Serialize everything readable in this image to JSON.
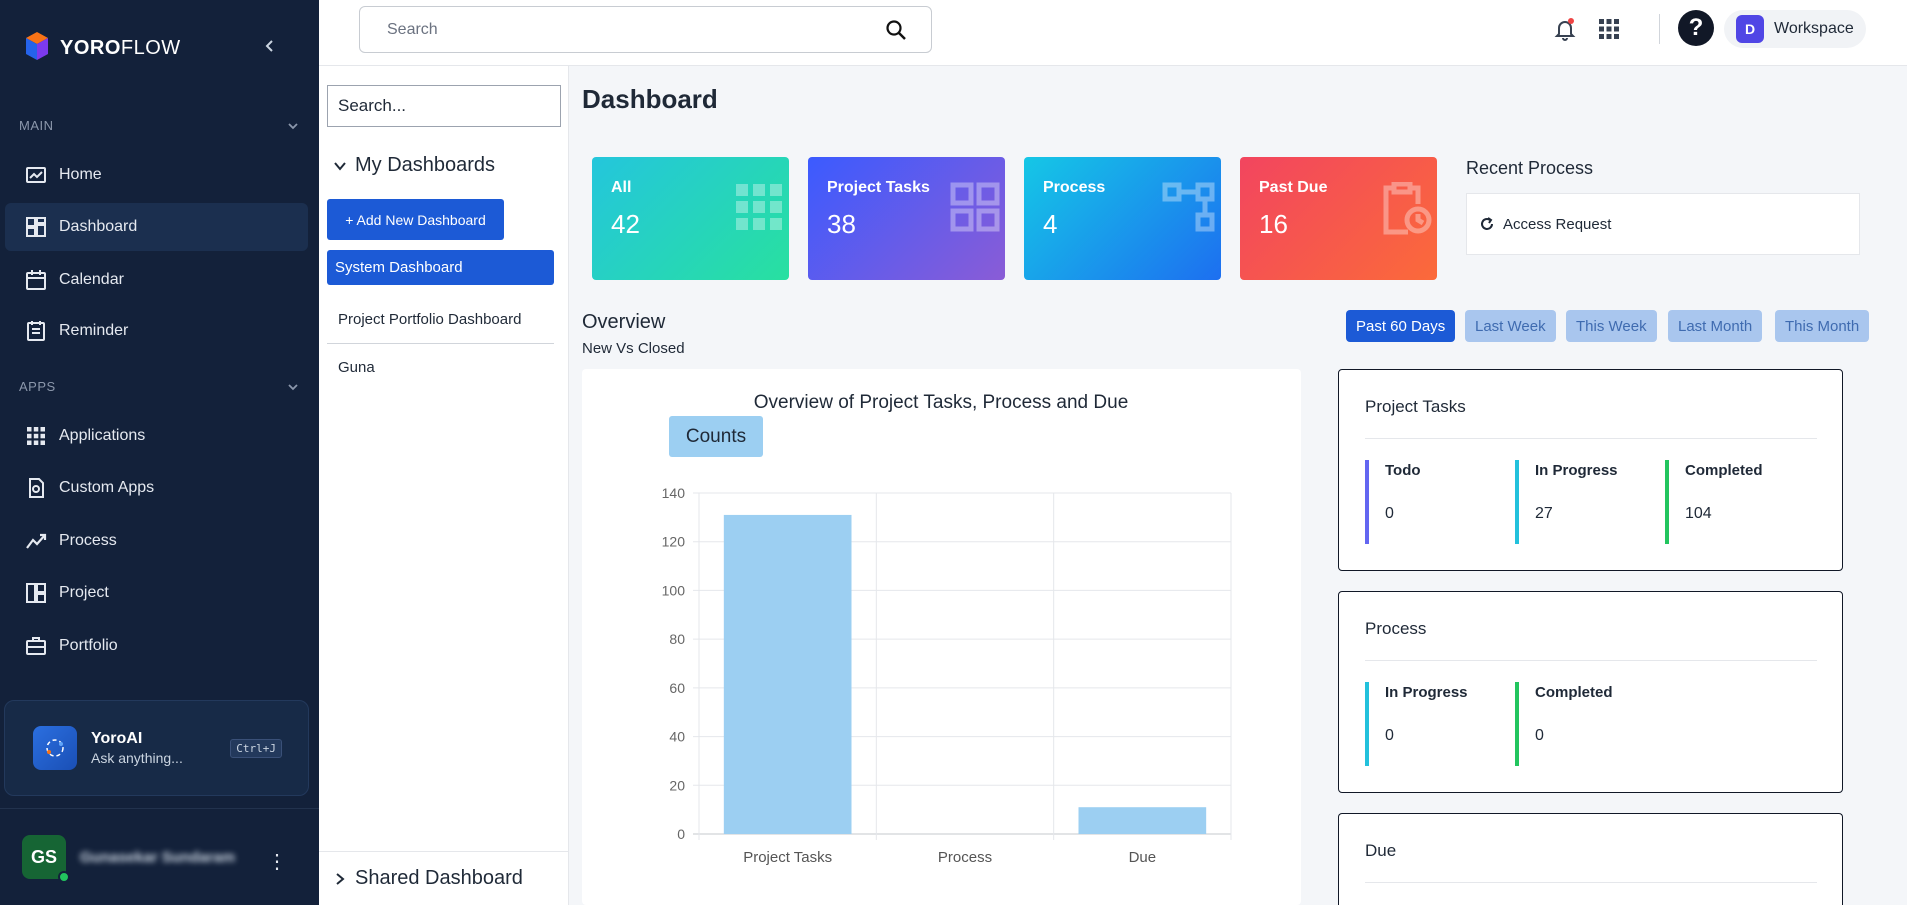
{
  "sidebar": {
    "logo": {
      "brand_bold": "YORO",
      "brand_light": "FLOW"
    },
    "sections": [
      {
        "label": "MAIN",
        "items": [
          "Home",
          "Dashboard",
          "Calendar",
          "Reminder"
        ]
      },
      {
        "label": "APPS",
        "items": [
          "Applications",
          "Custom Apps",
          "Process",
          "Project",
          "Portfolio"
        ]
      }
    ],
    "active_item": "Dashboard",
    "yoroai": {
      "title": "YoroAI",
      "subtitle": "Ask anything...",
      "shortcut": "Ctrl+J"
    },
    "user": {
      "initials": "GS",
      "name": "Gunasekar Sundaram"
    }
  },
  "header": {
    "search_placeholder": "Search",
    "workspace_initial": "D",
    "workspace_label": "Workspace",
    "help_label": "?"
  },
  "panel": {
    "search_placeholder": "Search...",
    "my_dashboards_label": "My Dashboards",
    "add_button_label": "+ Add New Dashboard",
    "items": [
      "System Dashboard",
      "Project Portfolio Dashboard",
      "Guna"
    ],
    "selected": "System Dashboard",
    "shared_label": "Shared Dashboard"
  },
  "main": {
    "title": "Dashboard",
    "stats": [
      {
        "label": "All",
        "value": "42",
        "icon": "grid-icon"
      },
      {
        "label": "Project Tasks",
        "value": "38",
        "icon": "dashboard-icon"
      },
      {
        "label": "Process",
        "value": "4",
        "icon": "flow-icon"
      },
      {
        "label": "Past Due",
        "value": "16",
        "icon": "clipboard-clock-icon"
      }
    ],
    "recent": {
      "title": "Recent Process",
      "items": [
        "Access Request"
      ]
    },
    "overview": {
      "title": "Overview",
      "subtitle": "New Vs Closed"
    },
    "filters": [
      "Past 60 Days",
      "Last Week",
      "This Week",
      "Last Month",
      "This Month"
    ],
    "active_filter": "Past 60 Days",
    "summary": [
      {
        "title": "Project Tasks",
        "metrics": [
          {
            "label": "Todo",
            "value": "0",
            "color": "#6366f1"
          },
          {
            "label": "In Progress",
            "value": "27",
            "color": "#22c1dc"
          },
          {
            "label": "Completed",
            "value": "104",
            "color": "#22c55e"
          }
        ]
      },
      {
        "title": "Process",
        "metrics": [
          {
            "label": "In Progress",
            "value": "0",
            "color": "#22c1dc"
          },
          {
            "label": "Completed",
            "value": "0",
            "color": "#22c55e"
          }
        ]
      },
      {
        "title": "Due",
        "metrics": []
      }
    ]
  },
  "chart_data": {
    "type": "bar",
    "title": "Overview of Project Tasks, Process and Due",
    "categories": [
      "Project Tasks",
      "Process",
      "Due"
    ],
    "series": [
      {
        "name": "Counts",
        "values": [
          131,
          0,
          11
        ],
        "color": "#9ccff2"
      }
    ],
    "ylim": [
      0,
      140
    ],
    "yticks": [
      0,
      20,
      40,
      60,
      80,
      100,
      120,
      140
    ],
    "grid": true,
    "legend": "top-left"
  }
}
